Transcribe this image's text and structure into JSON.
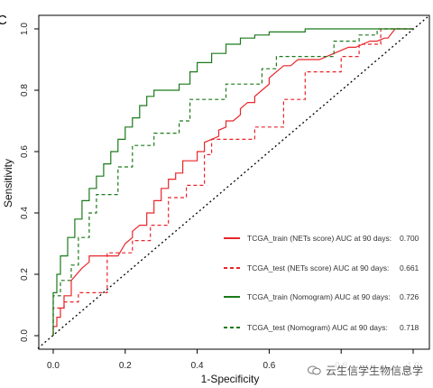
{
  "panel_label": "C",
  "watermark": "云生信学生物信息学",
  "chart_data": {
    "type": "line",
    "title": "",
    "xlabel": "1-Specificity",
    "ylabel": "Sensitivity",
    "xlim": [
      0,
      1
    ],
    "ylim": [
      0,
      1
    ],
    "x_ticks": [
      "0.0",
      "0.2",
      "0.4",
      "0.6",
      "0.8",
      "1.0"
    ],
    "y_ticks": [
      "0.0",
      "0.2",
      "0.4",
      "0.6",
      "0.8",
      "1.0"
    ],
    "grid": false,
    "legend_position": "bottom-right",
    "reference_line": {
      "x": [
        0,
        1
      ],
      "y": [
        0,
        1
      ],
      "style": "dotted",
      "color": "#000000"
    },
    "series": [
      {
        "name": "TCGA_train (NETs score) AUC at 90 days:",
        "auc": "0.700",
        "color": "#e8262a",
        "dash": "solid",
        "x": [
          0,
          0,
          0.01,
          0.01,
          0.02,
          0.02,
          0.03,
          0.03,
          0.05,
          0.05,
          0.08,
          0.1,
          0.1,
          0.13,
          0.15,
          0.18,
          0.2,
          0.22,
          0.22,
          0.24,
          0.26,
          0.26,
          0.28,
          0.28,
          0.3,
          0.3,
          0.32,
          0.32,
          0.34,
          0.34,
          0.36,
          0.36,
          0.38,
          0.4,
          0.4,
          0.42,
          0.42,
          0.44,
          0.46,
          0.46,
          0.48,
          0.48,
          0.5,
          0.52,
          0.52,
          0.54,
          0.56,
          0.56,
          0.58,
          0.6,
          0.6,
          0.62,
          0.64,
          0.66,
          0.68,
          0.7,
          0.72,
          0.74,
          0.76,
          0.78,
          0.8,
          0.82,
          0.84,
          0.86,
          0.88,
          0.9,
          0.92,
          0.93,
          0.95,
          1.0
        ],
        "y": [
          0,
          0.03,
          0.03,
          0.06,
          0.06,
          0.09,
          0.09,
          0.13,
          0.13,
          0.18,
          0.22,
          0.24,
          0.26,
          0.26,
          0.26,
          0.26,
          0.3,
          0.32,
          0.34,
          0.36,
          0.36,
          0.4,
          0.4,
          0.44,
          0.44,
          0.48,
          0.48,
          0.51,
          0.51,
          0.53,
          0.53,
          0.57,
          0.57,
          0.57,
          0.6,
          0.6,
          0.63,
          0.64,
          0.65,
          0.67,
          0.68,
          0.7,
          0.7,
          0.72,
          0.74,
          0.76,
          0.76,
          0.78,
          0.8,
          0.82,
          0.84,
          0.86,
          0.88,
          0.88,
          0.9,
          0.9,
          0.9,
          0.9,
          0.91,
          0.92,
          0.93,
          0.94,
          0.94,
          0.95,
          0.96,
          0.96,
          0.97,
          0.97,
          1.0,
          1.0
        ]
      },
      {
        "name": "TCGA_test (NETs score) AUC at 90 days:",
        "auc": "0.661",
        "color": "#e8262a",
        "dash": "dashed",
        "x": [
          0,
          0,
          0.03,
          0.03,
          0.07,
          0.07,
          0.09,
          0.09,
          0.15,
          0.15,
          0.22,
          0.22,
          0.27,
          0.27,
          0.32,
          0.32,
          0.37,
          0.37,
          0.42,
          0.42,
          0.44,
          0.44,
          0.52,
          0.52,
          0.56,
          0.56,
          0.64,
          0.64,
          0.7,
          0.7,
          0.75,
          0.75,
          0.8,
          0.8,
          0.85,
          0.85,
          0.91,
          0.91,
          1.0
        ],
        "y": [
          0,
          0.09,
          0.09,
          0.11,
          0.11,
          0.14,
          0.14,
          0.14,
          0.14,
          0.27,
          0.27,
          0.31,
          0.31,
          0.36,
          0.36,
          0.45,
          0.45,
          0.49,
          0.49,
          0.59,
          0.59,
          0.64,
          0.64,
          0.64,
          0.64,
          0.68,
          0.68,
          0.77,
          0.77,
          0.86,
          0.86,
          0.86,
          0.86,
          0.91,
          0.91,
          0.95,
          0.95,
          1.0,
          1.0
        ]
      },
      {
        "name": "TCGA_train (Nomogram) AUC at 90 days:",
        "auc": "0.726",
        "color": "#1a7a1a",
        "dash": "solid",
        "x": [
          0,
          0,
          0.01,
          0.01,
          0.02,
          0.02,
          0.04,
          0.04,
          0.06,
          0.06,
          0.08,
          0.08,
          0.1,
          0.1,
          0.12,
          0.12,
          0.14,
          0.14,
          0.16,
          0.16,
          0.18,
          0.18,
          0.2,
          0.2,
          0.22,
          0.22,
          0.24,
          0.24,
          0.26,
          0.26,
          0.28,
          0.28,
          0.3,
          0.3,
          0.35,
          0.35,
          0.38,
          0.38,
          0.4,
          0.4,
          0.44,
          0.44,
          0.48,
          0.48,
          0.52,
          0.52,
          0.56,
          0.56,
          0.6,
          0.6,
          0.7,
          0.7,
          0.8,
          1.0
        ],
        "y": [
          0,
          0.14,
          0.14,
          0.2,
          0.2,
          0.26,
          0.26,
          0.32,
          0.32,
          0.38,
          0.38,
          0.44,
          0.44,
          0.48,
          0.48,
          0.52,
          0.52,
          0.56,
          0.56,
          0.6,
          0.6,
          0.64,
          0.64,
          0.68,
          0.68,
          0.71,
          0.71,
          0.75,
          0.75,
          0.78,
          0.78,
          0.8,
          0.8,
          0.8,
          0.8,
          0.82,
          0.82,
          0.86,
          0.86,
          0.89,
          0.89,
          0.92,
          0.92,
          0.95,
          0.95,
          0.97,
          0.97,
          0.98,
          0.98,
          0.99,
          0.99,
          1.0,
          1.0,
          1.0
        ]
      },
      {
        "name": "TCGA_test (Nomogram) AUC at 90 days:",
        "auc": "0.718",
        "color": "#1a7a1a",
        "dash": "dashed",
        "x": [
          0,
          0,
          0.02,
          0.02,
          0.05,
          0.05,
          0.07,
          0.07,
          0.1,
          0.1,
          0.12,
          0.12,
          0.18,
          0.18,
          0.22,
          0.22,
          0.28,
          0.28,
          0.35,
          0.35,
          0.38,
          0.38,
          0.48,
          0.48,
          0.58,
          0.58,
          0.62,
          0.62,
          0.7,
          0.7,
          0.78,
          0.78,
          0.85,
          0.85,
          0.9,
          0.9,
          1.0
        ],
        "y": [
          0,
          0.13,
          0.13,
          0.18,
          0.18,
          0.23,
          0.23,
          0.32,
          0.32,
          0.4,
          0.4,
          0.46,
          0.46,
          0.55,
          0.55,
          0.62,
          0.62,
          0.66,
          0.66,
          0.7,
          0.7,
          0.77,
          0.77,
          0.82,
          0.82,
          0.87,
          0.87,
          0.91,
          0.91,
          0.91,
          0.91,
          0.96,
          0.96,
          0.98,
          0.98,
          1.0,
          1.0
        ]
      }
    ]
  }
}
